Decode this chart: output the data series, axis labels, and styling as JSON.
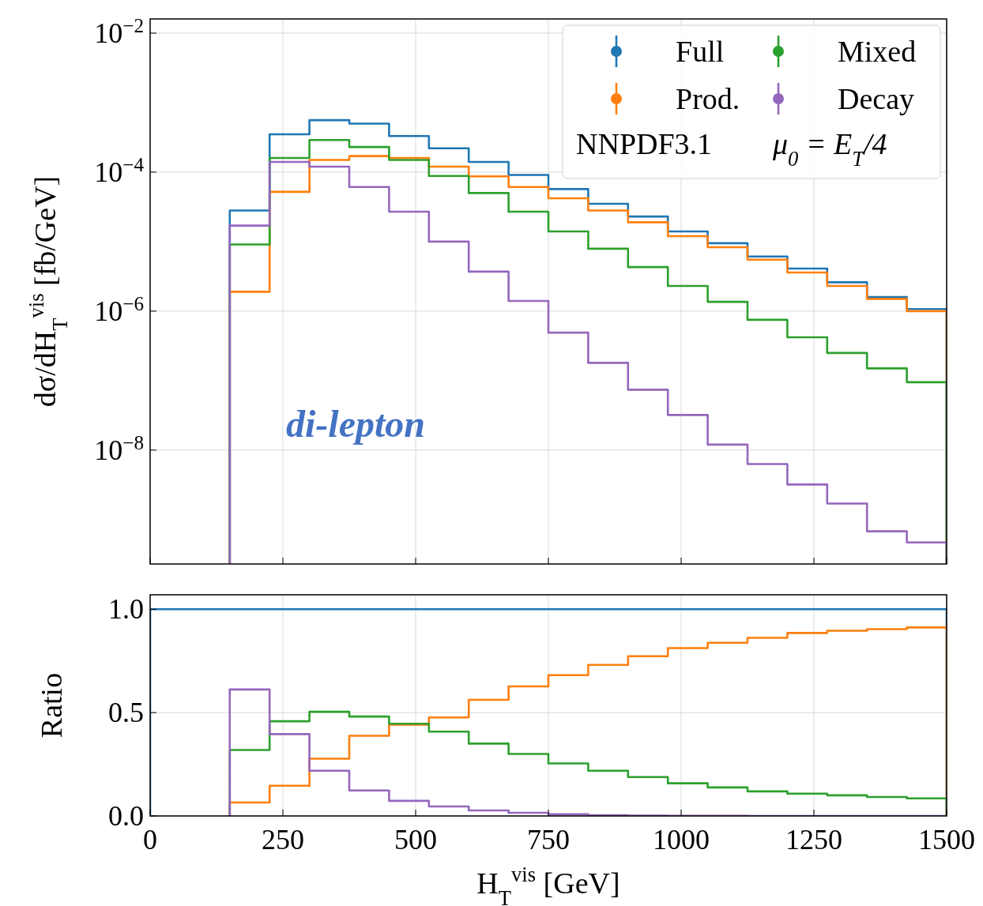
{
  "chart_data": [
    {
      "type": "histogram",
      "ylabel": "dσ/dH$_{T}$$^{vis}$ [fb/GeV]",
      "annotations": [
        "NNPDF3.1",
        "μ$_{0}$ = E$_{T}$/4",
        "di-lepton"
      ],
      "bins": [
        150,
        225,
        300,
        375,
        450,
        525,
        600,
        675,
        750,
        825,
        900,
        975,
        1050,
        1125,
        1200,
        1275,
        1350,
        1425,
        1500
      ],
      "series": [
        {
          "name": "Full",
          "color": "#1f77b4",
          "values": [
            2.8e-05,
            0.00035,
            0.00056,
            0.0005,
            0.00033,
            0.00022,
            0.00014,
            9.1e-05,
            5.7e-05,
            3.5e-05,
            2.3e-05,
            1.4e-05,
            9.5e-06,
            6.1e-06,
            4.1e-06,
            2.6e-06,
            1.6e-06,
            1.07e-06
          ]
        },
        {
          "name": "Prod.",
          "color": "#ff7f0e",
          "values": [
            1.9e-06,
            5.2e-05,
            0.00015,
            0.00017,
            0.00016,
            0.00012,
            8.7e-05,
            6.1e-05,
            4.2e-05,
            2.8e-05,
            1.9e-05,
            1.2e-05,
            8.3e-06,
            5.5e-06,
            3.6e-06,
            2.3e-06,
            1.5e-06,
            1e-06
          ]
        },
        {
          "name": "Mixed",
          "color": "#2ca02c",
          "values": [
            9.1e-06,
            0.00016,
            0.00029,
            0.00023,
            0.00015,
            8.8e-05,
            5e-05,
            2.7e-05,
            1.4e-05,
            7.9e-06,
            4.3e-06,
            2.3e-06,
            1.36e-06,
            7.5e-07,
            4.2e-07,
            2.5e-07,
            1.5e-07,
            9.5e-08
          ]
        },
        {
          "name": "Decay",
          "color": "#9467bd",
          "values": [
            1.7e-05,
            0.00014,
            0.00012,
            6.1e-05,
            2.7e-05,
            1e-05,
            3.7e-06,
            1.4e-06,
            4.9e-07,
            1.8e-07,
            7.4e-08,
            3.2e-08,
            1.2e-08,
            6.3e-09,
            3.2e-09,
            1.7e-09,
            6.8e-10,
            4.7e-10
          ]
        }
      ],
      "xlim": [
        0,
        1500
      ],
      "xticks": [
        0,
        250,
        500,
        750,
        1000,
        1250,
        1500
      ],
      "ylim": [
        2.3e-10,
        0.016
      ],
      "yticks": [
        {
          "value": 0.01,
          "label": "10$^{−2}$"
        },
        {
          "value": 0.0001,
          "label": "10$^{−4}$"
        },
        {
          "value": 1e-06,
          "label": "10$^{−6}$"
        },
        {
          "value": 1e-08,
          "label": "10$^{−8}$"
        }
      ],
      "log": "y",
      "grid": true,
      "legend": "top right",
      "tick_labels": "y"
    },
    {
      "type": "histogram",
      "xlabel": "H$_{T}$$^{vis}$ [GeV]",
      "ylabel": "Ratio",
      "bins": [
        0,
        150,
        225,
        300,
        375,
        450,
        525,
        600,
        675,
        750,
        825,
        900,
        975,
        1050,
        1125,
        1200,
        1275,
        1350,
        1425,
        1500
      ],
      "series": [
        {
          "color": "#1f77b4",
          "values": [
            1,
            1,
            1,
            1,
            1,
            1,
            1,
            1,
            1,
            1,
            1,
            1,
            1,
            1,
            1,
            1,
            1,
            1,
            1
          ]
        },
        {
          "color": "#ff7f0e",
          "bins": [
            150,
            225,
            300,
            375,
            450,
            525,
            600,
            675,
            750,
            825,
            900,
            975,
            1050,
            1125,
            1200,
            1275,
            1350,
            1425,
            1500
          ],
          "values": [
            0.065,
            0.146,
            0.277,
            0.388,
            0.442,
            0.477,
            0.562,
            0.627,
            0.681,
            0.731,
            0.773,
            0.812,
            0.838,
            0.862,
            0.885,
            0.896,
            0.904,
            0.912
          ]
        },
        {
          "color": "#2ca02c",
          "bins": [
            150,
            225,
            300,
            375,
            450,
            525,
            600,
            675,
            750,
            825,
            900,
            975,
            1050,
            1125,
            1200,
            1275,
            1350,
            1425,
            1500
          ],
          "values": [
            0.319,
            0.458,
            0.504,
            0.481,
            0.446,
            0.408,
            0.35,
            0.3,
            0.254,
            0.219,
            0.188,
            0.158,
            0.138,
            0.119,
            0.108,
            0.1,
            0.092,
            0.085
          ]
        },
        {
          "color": "#9467bd",
          "bins": [
            150,
            225,
            300,
            375,
            450,
            525,
            600,
            675,
            750,
            825,
            900,
            975,
            1050,
            1125,
            1200,
            1275,
            1350,
            1425,
            1500
          ],
          "values": [
            0.612,
            0.396,
            0.219,
            0.123,
            0.073,
            0.046,
            0.027,
            0.015,
            0.008,
            0.004,
            0.002,
            0.001,
            0.001,
            0.0,
            0.0,
            0.0,
            0.0,
            0.0
          ]
        }
      ],
      "xlim": [
        0,
        1500
      ],
      "xticks": [
        0,
        250,
        500,
        750,
        1000,
        1250,
        1500
      ],
      "ylim": [
        0,
        1.07
      ],
      "yticks": [
        {
          "value": 0,
          "label": "0.0"
        },
        {
          "value": 0.5,
          "label": "0.5"
        },
        {
          "value": 1,
          "label": "1.0"
        }
      ],
      "grid": true
    }
  ]
}
